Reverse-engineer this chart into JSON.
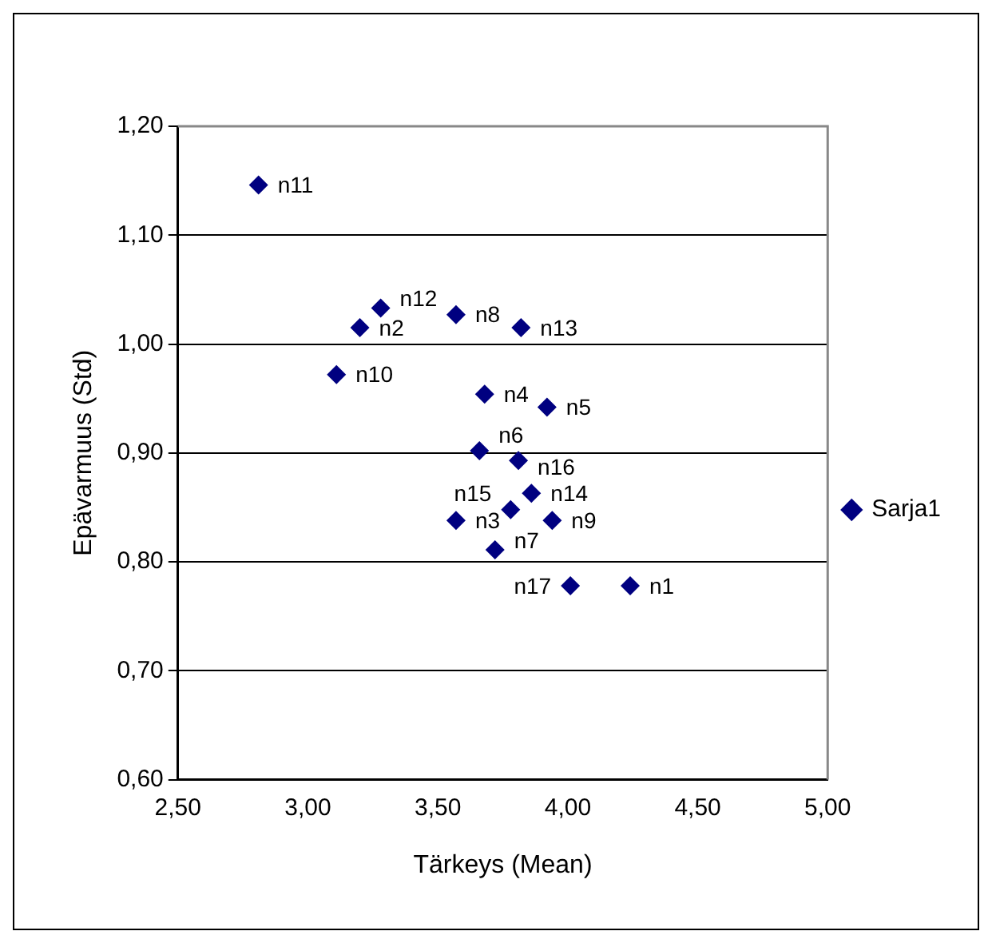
{
  "chart_data": {
    "type": "scatter",
    "xlabel": "Tärkeys (Mean)",
    "ylabel": "Epävarmuus (Std)",
    "x": [
      4.24,
      3.2,
      3.57,
      3.68,
      3.92,
      3.66,
      3.72,
      3.57,
      3.94,
      3.11,
      2.81,
      3.28,
      3.82,
      3.86,
      3.78,
      3.81,
      4.01
    ],
    "series": [
      {
        "name": "Sarja1",
        "color": "#000080",
        "values": [
          0.778,
          1.015,
          0.838,
          0.954,
          0.942,
          0.902,
          0.811,
          1.027,
          0.838,
          0.972,
          1.146,
          1.033,
          1.015,
          0.863,
          0.848,
          0.893,
          0.778
        ]
      }
    ],
    "annotations": [
      {
        "text": "n1",
        "x": 4.24,
        "y": 0.778
      },
      {
        "text": "n2",
        "x": 3.2,
        "y": 1.015
      },
      {
        "text": "n3",
        "x": 3.57,
        "y": 0.838
      },
      {
        "text": "n4",
        "x": 3.68,
        "y": 0.954
      },
      {
        "text": "n5",
        "x": 3.92,
        "y": 0.942
      },
      {
        "text": "n6",
        "x": 3.66,
        "y": 0.902
      },
      {
        "text": "n7",
        "x": 3.72,
        "y": 0.811
      },
      {
        "text": "n8",
        "x": 3.57,
        "y": 1.027
      },
      {
        "text": "n9",
        "x": 3.94,
        "y": 0.838
      },
      {
        "text": "n10",
        "x": 3.11,
        "y": 0.972
      },
      {
        "text": "n11",
        "x": 2.81,
        "y": 1.146
      },
      {
        "text": "n12",
        "x": 3.28,
        "y": 1.033
      },
      {
        "text": "n13",
        "x": 3.82,
        "y": 1.015
      },
      {
        "text": "n14",
        "x": 3.86,
        "y": 0.863
      },
      {
        "text": "n15",
        "x": 3.78,
        "y": 0.848
      },
      {
        "text": "n16",
        "x": 3.81,
        "y": 0.893
      },
      {
        "text": "n17",
        "x": 4.01,
        "y": 0.778
      }
    ],
    "xlim": [
      2.5,
      5.0
    ],
    "xticks": [
      {
        "value": 2.5,
        "label": "2,50"
      },
      {
        "value": 3.0,
        "label": "3,00"
      },
      {
        "value": 3.5,
        "label": "3,50"
      },
      {
        "value": 4.0,
        "label": "4,00"
      },
      {
        "value": 4.5,
        "label": "4,50"
      },
      {
        "value": 5.0,
        "label": "5,00"
      }
    ],
    "ylim": [
      0.6,
      1.2
    ],
    "yticks": [
      {
        "value": 0.6,
        "label": "0,60"
      },
      {
        "value": 0.7,
        "label": "0,70"
      },
      {
        "value": 0.8,
        "label": "0,80"
      },
      {
        "value": 0.9,
        "label": "0,90"
      },
      {
        "value": 1.0,
        "label": "1,00"
      },
      {
        "value": 1.1,
        "label": "1,10"
      },
      {
        "value": 1.2,
        "label": "1,20"
      }
    ],
    "grid": "y",
    "legend": "right",
    "marker": "diamond"
  }
}
